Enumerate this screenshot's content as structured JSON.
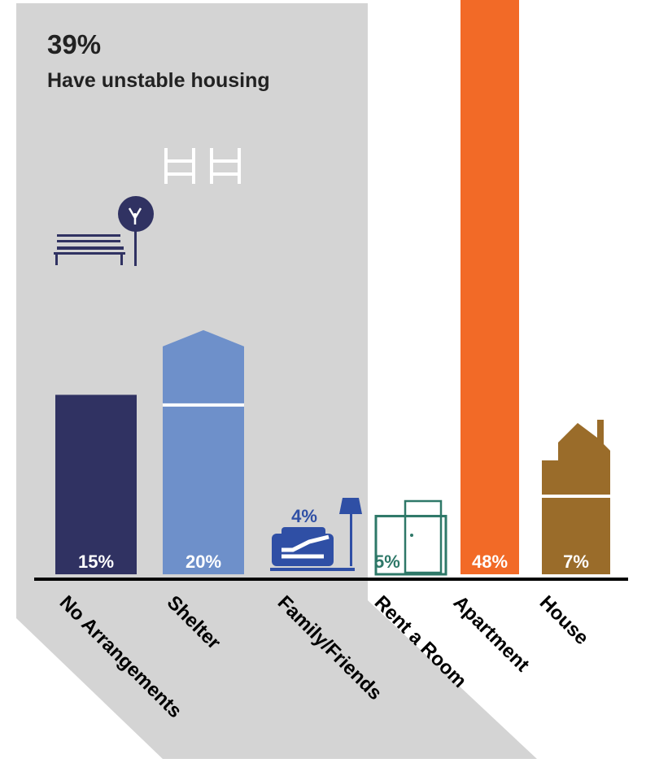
{
  "headline": {
    "percent": "39%",
    "text": "Have unstable housing"
  },
  "chart_data": {
    "type": "bar",
    "title": "",
    "xlabel": "",
    "ylabel": "",
    "ylim": [
      0,
      48
    ],
    "categories": [
      "No Arrangements",
      "Shelter",
      "Family/Friends",
      "Rent a Room",
      "Apartment",
      "House"
    ],
    "values": [
      15,
      20,
      4,
      5,
      48,
      7
    ],
    "value_labels": [
      "15%",
      "20%",
      "4%",
      "5%",
      "48%",
      "7%"
    ],
    "icons": [
      "park-bench-icon",
      "bunk-beds-icon",
      "couch-with-lamp-icon",
      "door-icon",
      "",
      "house-icon"
    ],
    "colors": [
      "#303262",
      "#6e90ca",
      "#2f4fa5",
      "#2e7868",
      "#f26a27",
      "#9a6c2a"
    ],
    "highlight_group": {
      "categories": [
        "No Arrangements",
        "Shelter",
        "Family/Friends"
      ],
      "color": "#d4d4d4"
    },
    "grid": false,
    "legend": "none"
  }
}
